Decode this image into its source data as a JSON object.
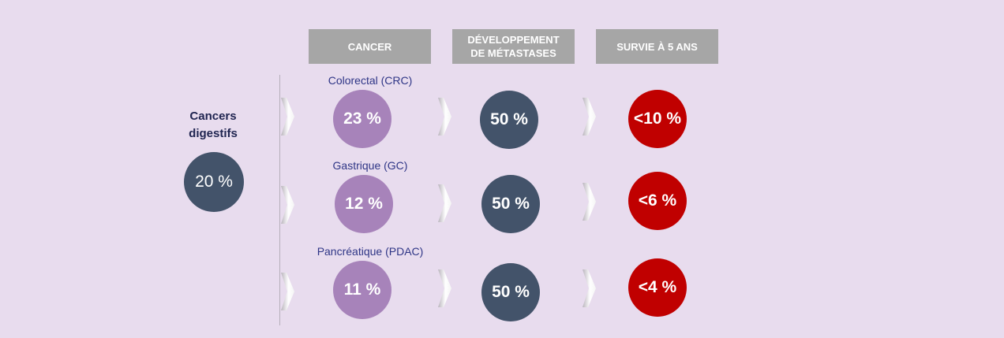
{
  "headers": {
    "cancer": "CANCER",
    "metastases": "DÉVELOPPEMENT\nDE MÉTASTASES",
    "survival": "SURVIE À 5 ANS"
  },
  "group": {
    "title": "Cancers\ndigestifs",
    "value": "20 %"
  },
  "rows": [
    {
      "label": "Colorectal (CRC)",
      "share": "23 %",
      "metastases": "50 %",
      "survival": "<10 %"
    },
    {
      "label": "Gastrique (GC)",
      "share": "12 %",
      "metastases": "50 %",
      "survival": "<6 %"
    },
    {
      "label": "Pancréatique (PDAC)",
      "share": "11 %",
      "metastases": "50 %",
      "survival": "<4 %"
    }
  ],
  "colors": {
    "background": "#e8dcee",
    "header": "#a6a6a6",
    "cancer_circle": "#a783ba",
    "metastases_circle": "#43536a",
    "survival_circle": "#c00000",
    "label_text": "#2e3586"
  }
}
